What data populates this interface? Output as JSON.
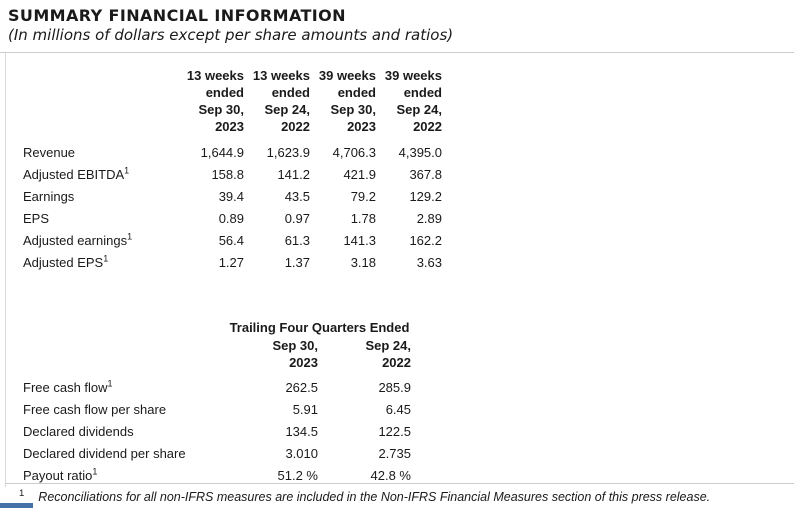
{
  "page": {
    "title": "SUMMARY FINANCIAL INFORMATION",
    "subtitle": "(In millions of dollars except per share amounts and ratios)"
  },
  "quarterly_table": {
    "columns": [
      "13 weeks\nended\nSep 30,\n2023",
      "13 weeks\nended\nSep 24,\n2022",
      "39 weeks\nended\nSep 30,\n2023",
      "39 weeks\nended\nSep 24,\n2022"
    ],
    "rows": [
      {
        "label": "Revenue",
        "values": [
          "1,644.9",
          "1,623.9",
          "4,706.3",
          "4,395.0"
        ]
      },
      {
        "label": "Adjusted EBITDA",
        "sup": "1",
        "values": [
          "158.8",
          "141.2",
          "421.9",
          "367.8"
        ]
      },
      {
        "label": "Earnings",
        "values": [
          "39.4",
          "43.5",
          "79.2",
          "129.2"
        ]
      },
      {
        "label": "EPS",
        "values": [
          "0.89",
          "0.97",
          "1.78",
          "2.89"
        ]
      },
      {
        "label": "Adjusted earnings",
        "sup": "1",
        "values": [
          "56.4",
          "61.3",
          "141.3",
          "162.2"
        ]
      },
      {
        "label": "Adjusted EPS",
        "sup": "1",
        "values": [
          "1.27",
          "1.37",
          "3.18",
          "3.63"
        ]
      }
    ]
  },
  "trailing_table": {
    "header": "Trailing Four Quarters Ended",
    "columns": [
      "Sep 30,\n2023",
      "Sep 24,\n2022"
    ],
    "rows": [
      {
        "label": "Free cash flow",
        "sup": "1",
        "values": [
          "262.5",
          "285.9"
        ]
      },
      {
        "label": "Free cash flow per share",
        "values": [
          "5.91",
          "6.45"
        ]
      },
      {
        "label": "Declared dividends",
        "values": [
          "134.5",
          "122.5"
        ]
      },
      {
        "label": "Declared dividend per share",
        "values": [
          "3.010",
          "2.735"
        ]
      },
      {
        "label": "Payout ratio",
        "sup": "1",
        "values": [
          "51.2 %",
          "42.8 %"
        ]
      }
    ]
  },
  "footnote": {
    "marker": "1",
    "text": "Reconciliations for all non-IFRS measures are included in the Non-IFRS Financial Measures section of this press release."
  },
  "colors": {
    "text": "#1a1a1a",
    "rule": "#cccccc",
    "accent_blue": "#4472a8"
  }
}
